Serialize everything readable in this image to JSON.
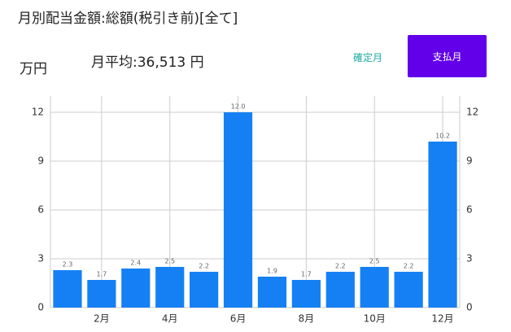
{
  "header": {
    "title": "月別配当金額:総額(税引き前)[全て]",
    "unit": "万円",
    "average": "月平均:36,513 円"
  },
  "buttons": {
    "confirmed": "確定月",
    "paid": "支払月"
  },
  "chart_data": {
    "type": "bar",
    "categories": [
      null,
      "2月",
      null,
      "4月",
      null,
      "6月",
      null,
      "8月",
      null,
      "10月",
      null,
      "12月"
    ],
    "values": [
      2.3,
      1.7,
      2.4,
      2.5,
      2.2,
      12.0,
      1.9,
      1.7,
      2.2,
      2.5,
      2.2,
      10.2
    ],
    "value_labels": [
      "2.3",
      "1.7",
      "2.4",
      "2.5",
      "2.2",
      "12.0",
      "1.9",
      "1.7",
      "2.2",
      "2.5",
      "2.2",
      "10.2"
    ],
    "color": "#1580f4",
    "ylim": [
      0,
      13
    ],
    "yticks": [
      0,
      3,
      6,
      9,
      12
    ],
    "y2lim": [
      0,
      13
    ],
    "y2ticks": [
      0,
      3,
      6,
      9,
      12
    ],
    "grid": true
  }
}
